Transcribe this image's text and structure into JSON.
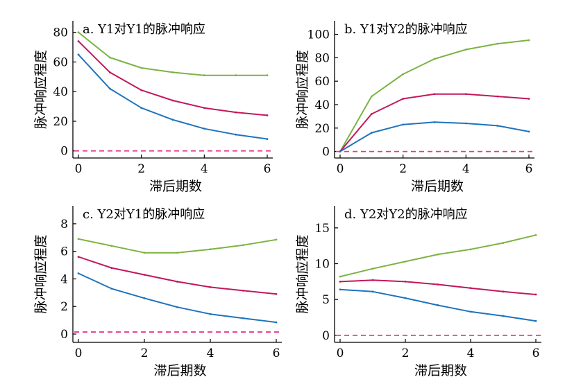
{
  "chart_data": [
    {
      "type": "line",
      "title": "a. Y1对Y1的脉冲响应",
      "xlabel": "滞后期数",
      "ylabel": "脉冲响应程度",
      "x": [
        0,
        1,
        2,
        3,
        4,
        5,
        6
      ],
      "xticks": [
        0,
        2,
        4,
        6
      ],
      "xlim": [
        0,
        6
      ],
      "yticks": [
        0,
        20,
        40,
        60,
        80
      ],
      "ylim": [
        -2,
        85
      ],
      "series": [
        {
          "color": "#7cb342",
          "values": [
            80,
            63,
            56,
            53,
            51,
            51,
            51
          ]
        },
        {
          "color": "#c2185b",
          "values": [
            74,
            53,
            41,
            34,
            29,
            26,
            24
          ]
        },
        {
          "color": "#1e73be",
          "values": [
            65,
            42,
            29,
            21,
            15,
            11,
            8
          ]
        }
      ],
      "zero_line": {
        "value": 0,
        "color": "#e8388a",
        "style": "dashed"
      }
    },
    {
      "type": "line",
      "title": "b. Y1对Y2的脉冲响应",
      "xlabel": "滞后期数",
      "ylabel": "脉冲响应程度",
      "x": [
        0,
        1,
        2,
        3,
        4,
        5,
        6
      ],
      "xticks": [
        0,
        2,
        4,
        6
      ],
      "xlim": [
        0,
        6
      ],
      "yticks": [
        0,
        20,
        40,
        60,
        80,
        100
      ],
      "ylim": [
        -2,
        108
      ],
      "series": [
        {
          "color": "#7cb342",
          "values": [
            0,
            47,
            66,
            79,
            87,
            92,
            95
          ]
        },
        {
          "color": "#c2185b",
          "values": [
            0,
            32,
            45,
            49,
            49,
            47,
            45
          ]
        },
        {
          "color": "#1e73be",
          "values": [
            0,
            16,
            23,
            25,
            24,
            22,
            17
          ]
        }
      ],
      "zero_line": {
        "value": 0,
        "color": "#e8388a",
        "style": "dashed"
      }
    },
    {
      "type": "line",
      "title": "c. Y2对Y1的脉冲响应",
      "xlabel": "滞后期数",
      "ylabel": "脉冲响应程度",
      "x": [
        0,
        1,
        2,
        3,
        4,
        5,
        6
      ],
      "xticks": [
        0,
        2,
        4,
        6
      ],
      "xlim": [
        0,
        6
      ],
      "yticks": [
        0,
        2,
        4,
        6,
        8
      ],
      "ylim": [
        -0.3,
        9
      ],
      "series": [
        {
          "color": "#7cb342",
          "values": [
            6.9,
            6.4,
            5.9,
            5.9,
            6.15,
            6.45,
            6.85
          ]
        },
        {
          "color": "#c2185b",
          "values": [
            5.6,
            4.8,
            4.3,
            3.8,
            3.4,
            3.15,
            2.9
          ]
        },
        {
          "color": "#1e73be",
          "values": [
            4.4,
            3.3,
            2.6,
            1.95,
            1.45,
            1.15,
            0.85
          ]
        }
      ],
      "zero_line": {
        "value": 0.15,
        "color": "#e8388a",
        "style": "dashed"
      }
    },
    {
      "type": "line",
      "title": "d. Y2对Y2的脉冲响应",
      "xlabel": "滞后期数",
      "ylabel": "脉冲响应程度",
      "x": [
        0,
        1,
        2,
        3,
        4,
        5,
        6
      ],
      "xticks": [
        0,
        2,
        4,
        6
      ],
      "xlim": [
        0,
        6
      ],
      "yticks": [
        0,
        5,
        10,
        15
      ],
      "ylim": [
        -0.4,
        17.5
      ],
      "series": [
        {
          "color": "#7cb342",
          "values": [
            8.2,
            9.3,
            10.3,
            11.3,
            12,
            12.9,
            14
          ]
        },
        {
          "color": "#c2185b",
          "values": [
            7.5,
            7.7,
            7.5,
            7.1,
            6.6,
            6.1,
            5.7
          ]
        },
        {
          "color": "#1e73be",
          "values": [
            6.4,
            6.1,
            5.2,
            4.2,
            3.3,
            2.7,
            2
          ]
        }
      ],
      "zero_line": {
        "value": 0,
        "color": "#e8388a",
        "style": "dashed"
      }
    }
  ]
}
